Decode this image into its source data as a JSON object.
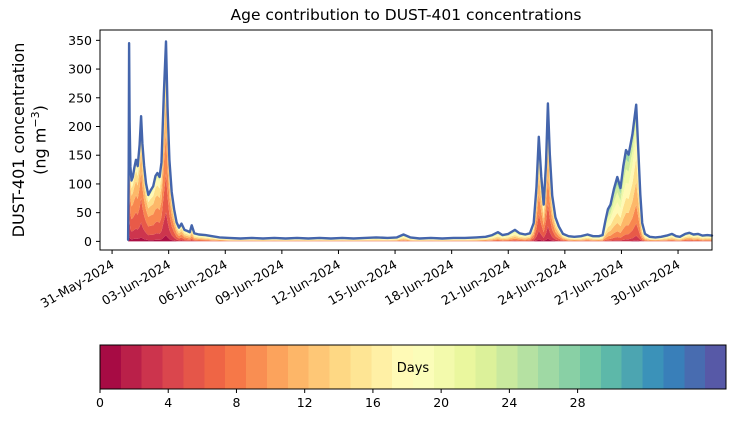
{
  "chart_data": {
    "type": "area",
    "subtype": "age-stacked-area",
    "title": "Age contribution to DUST-401 concentrations",
    "ylabel_line1": "DUST-401 concentration",
    "ylabel_line2_pre": "(ng m",
    "ylabel_line2_sup": "−3",
    "ylabel_line2_post": ")",
    "x_unit": "days since 31-May-2024 00:00",
    "x_tick_days": [
      0,
      3,
      6,
      9,
      12,
      15,
      18,
      21,
      24,
      27,
      30
    ],
    "x_tick_labels": [
      "31-May-2024",
      "03-Jun-2024",
      "06-Jun-2024",
      "09-Jun-2024",
      "12-Jun-2024",
      "15-Jun-2024",
      "18-Jun-2024",
      "21-Jun-2024",
      "24-Jun-2024",
      "27-Jun-2024",
      "30-Jun-2024"
    ],
    "x_range_days": [
      -0.64,
      31.8
    ],
    "ylim": [
      -15,
      368
    ],
    "y_ticks": [
      0,
      50,
      100,
      150,
      200,
      250,
      300,
      350
    ],
    "grid": false,
    "legend": "colorbar",
    "series": [
      [
        0.85,
        3,
        0.2
      ],
      [
        0.88,
        130,
        0.15
      ],
      [
        0.9,
        345,
        0.15
      ],
      [
        0.93,
        210,
        0.15
      ],
      [
        0.97,
        130,
        0.15
      ],
      [
        1.03,
        106,
        0.15
      ],
      [
        1.1,
        112,
        0.15
      ],
      [
        1.18,
        128,
        0.16
      ],
      [
        1.27,
        142,
        0.16
      ],
      [
        1.36,
        131,
        0.16
      ],
      [
        1.46,
        168,
        0.17
      ],
      [
        1.54,
        218,
        0.17
      ],
      [
        1.61,
        170,
        0.17
      ],
      [
        1.7,
        132,
        0.18
      ],
      [
        1.8,
        101,
        0.18
      ],
      [
        1.92,
        81,
        0.2
      ],
      [
        2.05,
        89,
        0.22
      ],
      [
        2.18,
        96,
        0.24
      ],
      [
        2.3,
        114,
        0.24
      ],
      [
        2.4,
        119,
        0.24
      ],
      [
        2.52,
        112,
        0.24
      ],
      [
        2.62,
        138,
        0.22
      ],
      [
        2.74,
        255,
        0.2
      ],
      [
        2.86,
        348,
        0.18
      ],
      [
        2.94,
        235,
        0.18
      ],
      [
        3.04,
        142,
        0.2
      ],
      [
        3.16,
        86,
        0.22
      ],
      [
        3.29,
        56,
        0.25
      ],
      [
        3.42,
        33,
        0.3
      ],
      [
        3.55,
        24,
        0.35
      ],
      [
        3.68,
        31,
        0.35
      ],
      [
        3.84,
        20,
        0.4
      ],
      [
        4.0,
        18,
        0.42
      ],
      [
        4.12,
        16,
        0.45
      ],
      [
        4.22,
        28,
        0.45
      ],
      [
        4.36,
        14,
        0.5
      ],
      [
        4.6,
        12,
        0.52
      ],
      [
        4.95,
        11,
        0.55
      ],
      [
        5.3,
        9,
        0.58
      ],
      [
        5.7,
        7,
        0.6
      ],
      [
        6.2,
        6,
        0.62
      ],
      [
        6.8,
        5,
        0.65
      ],
      [
        7.4,
        6,
        0.66
      ],
      [
        8.0,
        5,
        0.68
      ],
      [
        8.6,
        6,
        0.68
      ],
      [
        9.2,
        5,
        0.7
      ],
      [
        9.8,
        6,
        0.7
      ],
      [
        10.4,
        5,
        0.7
      ],
      [
        11.0,
        6,
        0.7
      ],
      [
        11.6,
        5,
        0.7
      ],
      [
        12.2,
        6,
        0.7
      ],
      [
        12.8,
        5,
        0.7
      ],
      [
        13.4,
        6,
        0.7
      ],
      [
        14.0,
        7,
        0.7
      ],
      [
        14.6,
        6,
        0.7
      ],
      [
        15.1,
        7,
        0.68
      ],
      [
        15.45,
        12,
        0.66
      ],
      [
        15.8,
        7,
        0.68
      ],
      [
        16.3,
        5,
        0.7
      ],
      [
        16.9,
        6,
        0.7
      ],
      [
        17.5,
        5,
        0.7
      ],
      [
        18.1,
        6,
        0.7
      ],
      [
        18.7,
        6,
        0.7
      ],
      [
        19.3,
        7,
        0.68
      ],
      [
        19.8,
        8,
        0.66
      ],
      [
        20.15,
        11,
        0.64
      ],
      [
        20.45,
        16,
        0.62
      ],
      [
        20.7,
        11,
        0.62
      ],
      [
        21.0,
        13,
        0.6
      ],
      [
        21.35,
        20,
        0.58
      ],
      [
        21.6,
        14,
        0.56
      ],
      [
        21.9,
        12,
        0.55
      ],
      [
        22.15,
        14,
        0.5
      ],
      [
        22.35,
        32,
        0.4
      ],
      [
        22.5,
        95,
        0.32
      ],
      [
        22.62,
        182,
        0.28
      ],
      [
        22.75,
        112,
        0.28
      ],
      [
        22.88,
        64,
        0.3
      ],
      [
        23.0,
        135,
        0.28
      ],
      [
        23.1,
        240,
        0.26
      ],
      [
        23.2,
        152,
        0.28
      ],
      [
        23.33,
        80,
        0.3
      ],
      [
        23.5,
        42,
        0.35
      ],
      [
        23.68,
        26,
        0.4
      ],
      [
        23.9,
        13,
        0.5
      ],
      [
        24.2,
        9,
        0.6
      ],
      [
        24.5,
        8,
        0.65
      ],
      [
        24.85,
        9,
        0.65
      ],
      [
        25.2,
        12,
        0.62
      ],
      [
        25.5,
        9,
        0.65
      ],
      [
        25.8,
        9,
        0.68
      ],
      [
        26.0,
        11,
        0.7
      ],
      [
        26.15,
        36,
        0.72
      ],
      [
        26.28,
        56,
        0.72
      ],
      [
        26.42,
        64,
        0.72
      ],
      [
        26.6,
        91,
        0.72
      ],
      [
        26.78,
        112,
        0.72
      ],
      [
        26.95,
        93,
        0.72
      ],
      [
        27.1,
        131,
        0.7
      ],
      [
        27.24,
        159,
        0.68
      ],
      [
        27.38,
        151,
        0.66
      ],
      [
        27.58,
        186,
        0.6
      ],
      [
        27.78,
        238,
        0.52
      ],
      [
        27.9,
        155,
        0.52
      ],
      [
        28.0,
        82,
        0.55
      ],
      [
        28.1,
        32,
        0.6
      ],
      [
        28.25,
        13,
        0.62
      ],
      [
        28.5,
        8,
        0.65
      ],
      [
        28.8,
        7,
        0.65
      ],
      [
        29.1,
        8,
        0.62
      ],
      [
        29.4,
        10,
        0.6
      ],
      [
        29.68,
        13,
        0.58
      ],
      [
        29.9,
        9,
        0.6
      ],
      [
        30.1,
        8,
        0.6
      ],
      [
        30.38,
        13,
        0.55
      ],
      [
        30.6,
        15,
        0.52
      ],
      [
        30.82,
        12,
        0.55
      ],
      [
        31.05,
        13,
        0.55
      ],
      [
        31.3,
        10,
        0.58
      ],
      [
        31.55,
        11,
        0.58
      ],
      [
        31.8,
        10,
        0.6
      ]
    ],
    "age_band_bounds": [
      0.05,
      0.12,
      0.2,
      0.28,
      0.36,
      0.44,
      0.52,
      0.6,
      0.68,
      0.76,
      0.85,
      1.0
    ],
    "colormap_spectral": [
      "#9e0142",
      "#d53e4f",
      "#f46d43",
      "#fdae61",
      "#fee08b",
      "#ffffbf",
      "#e6f598",
      "#abdda4",
      "#66c2a5",
      "#3288bd",
      "#5e4fa2"
    ],
    "edge_color": "#4465ac",
    "axis_color": "#000000",
    "colorbar": {
      "label": "Days",
      "ticks": [
        0,
        4,
        8,
        12,
        16,
        20,
        24,
        28
      ],
      "vmin": 0,
      "vmax": 36.7,
      "segments": 30
    }
  }
}
